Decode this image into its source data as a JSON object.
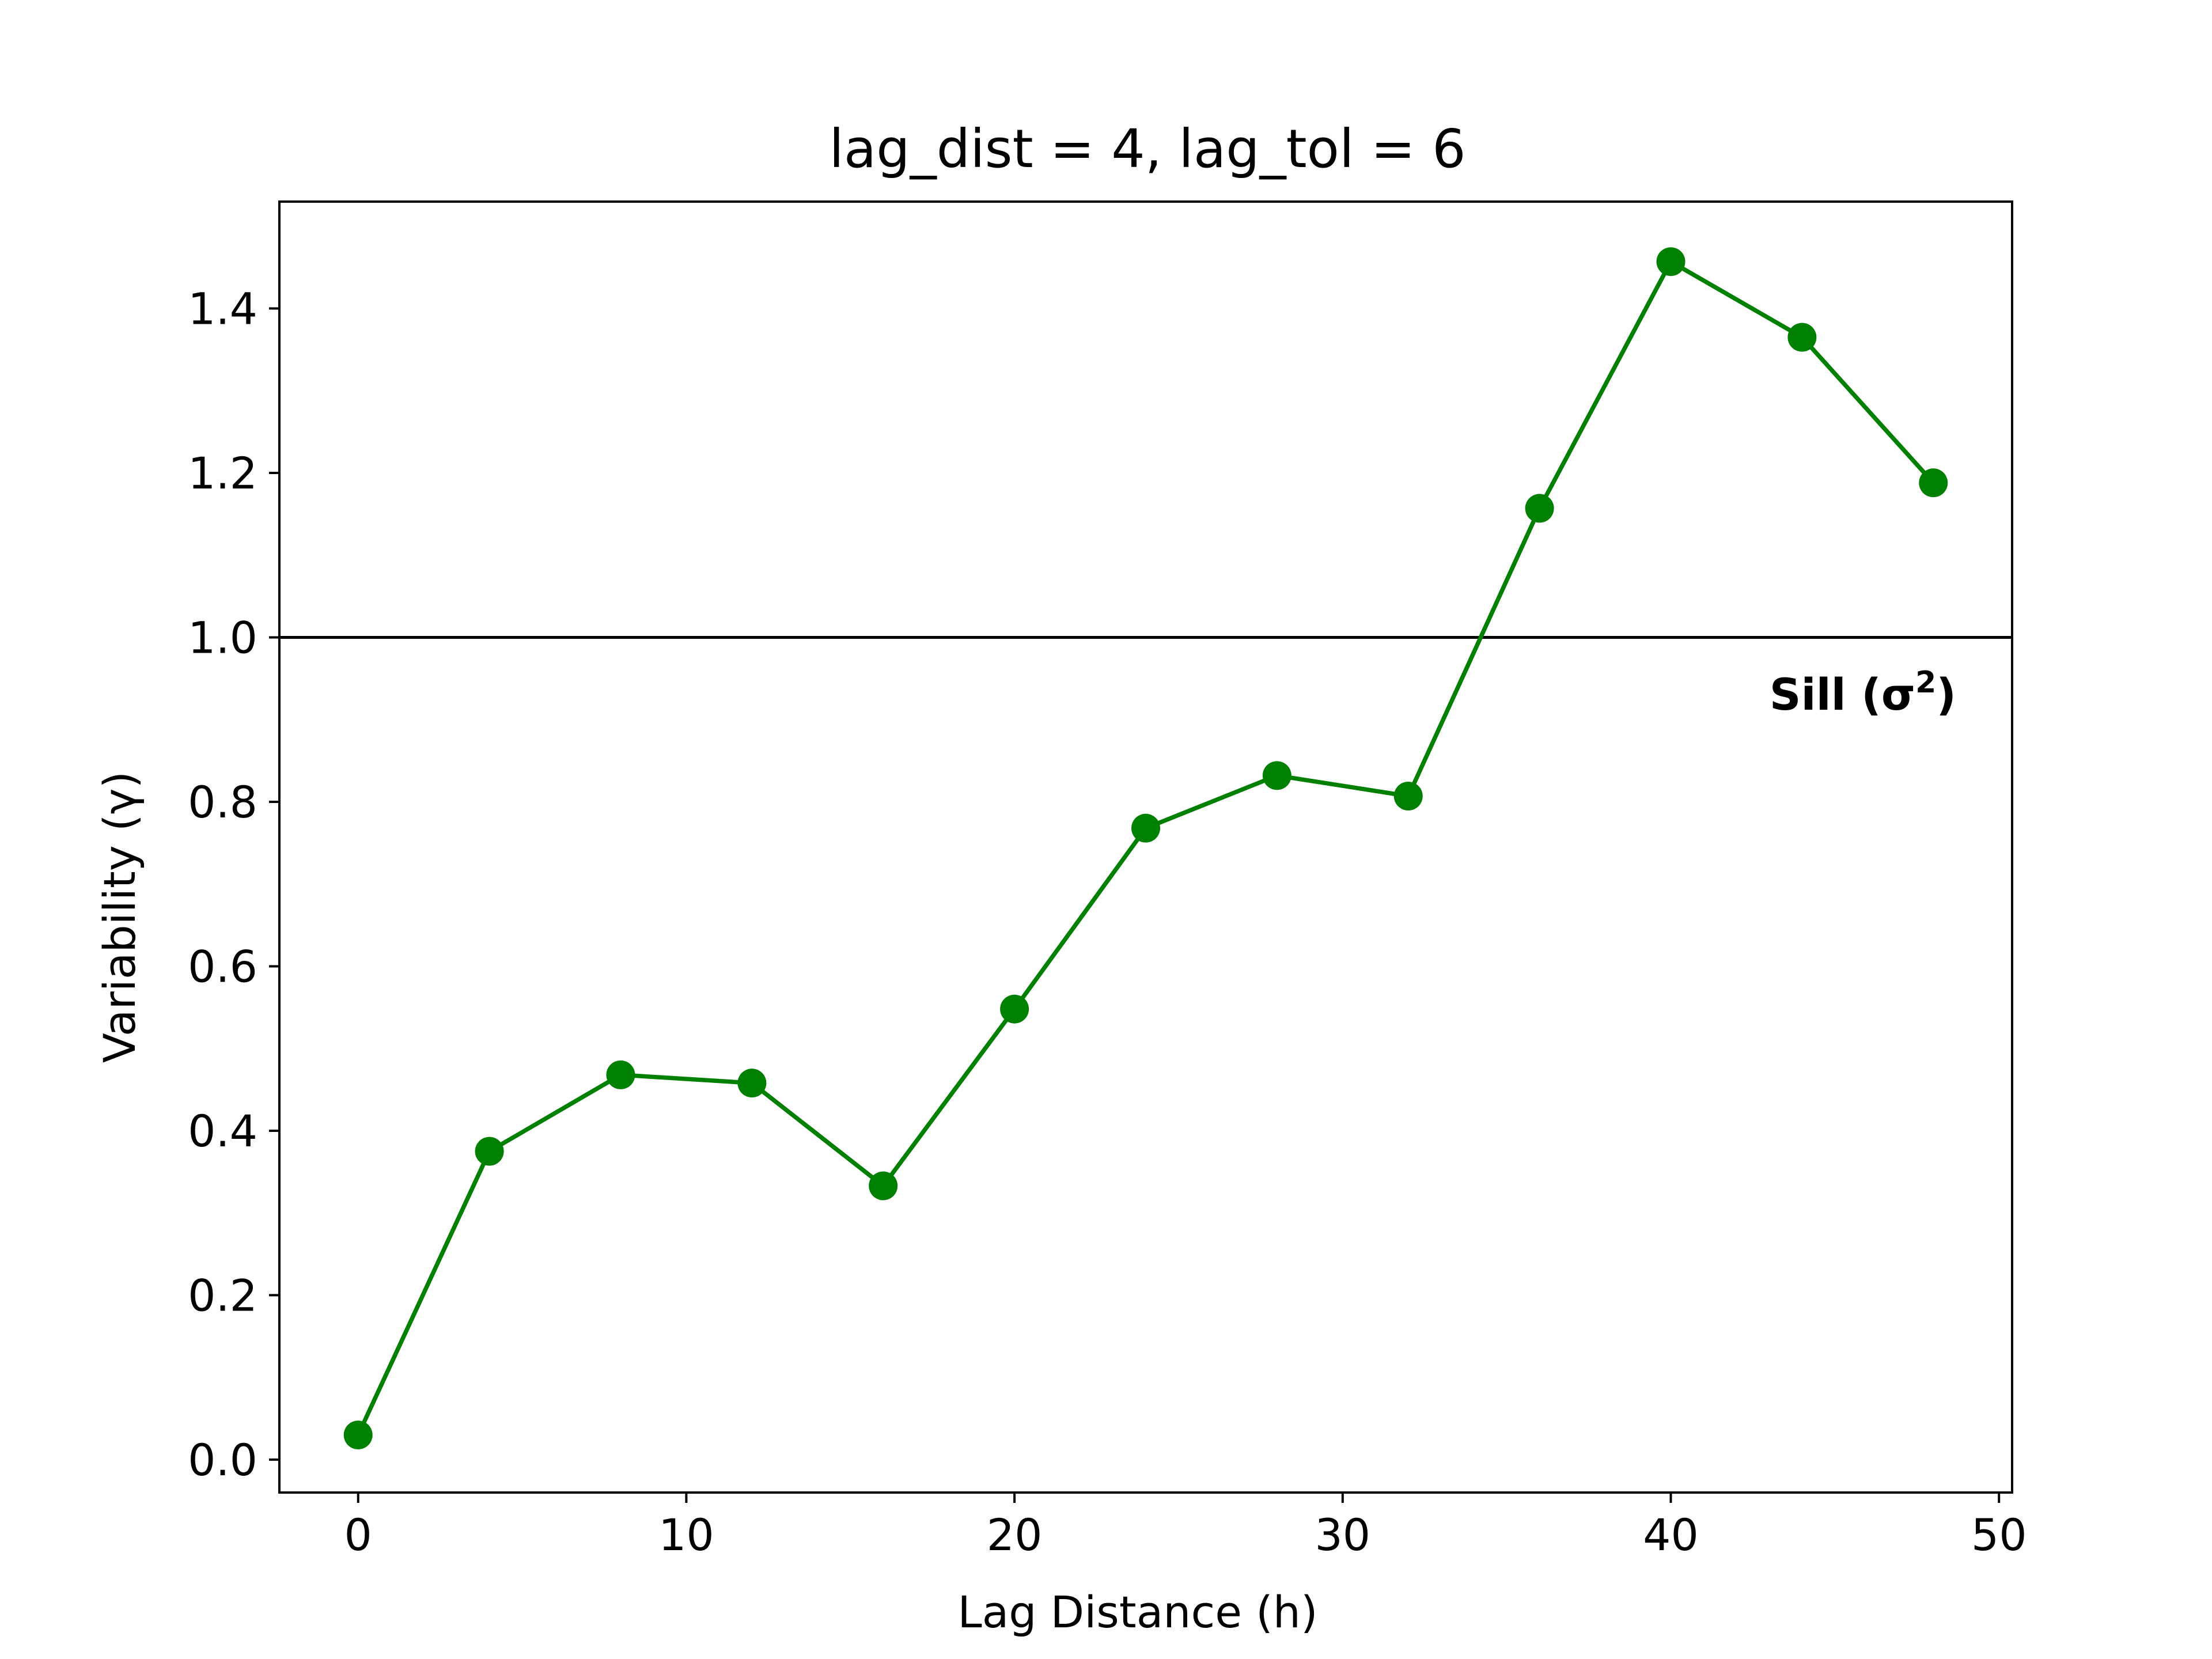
{
  "chart_data": {
    "type": "line",
    "title": "lag_dist = 4, lag_tol = 6",
    "xlabel": "Lag Distance (h)",
    "ylabel": "Variability (γ)",
    "xlim": [
      -2.4,
      50.4
    ],
    "ylim": [
      -0.04,
      1.53
    ],
    "xticks": [
      0,
      10,
      20,
      30,
      40,
      50
    ],
    "yticks": [
      0.0,
      0.2,
      0.4,
      0.6,
      0.8,
      1.0,
      1.2,
      1.4
    ],
    "xtick_labels": [
      "0",
      "10",
      "20",
      "30",
      "40",
      "50"
    ],
    "ytick_labels": [
      "0.0",
      "0.2",
      "0.4",
      "0.6",
      "0.8",
      "1.0",
      "1.2",
      "1.4"
    ],
    "grid": false,
    "series": [
      {
        "color": "#008000",
        "marker": "circle",
        "x": [
          0,
          4,
          8,
          12,
          16,
          20,
          24,
          28,
          32,
          36,
          40,
          44,
          48
        ],
        "y": [
          0.03,
          0.375,
          0.468,
          0.458,
          0.333,
          0.548,
          0.768,
          0.832,
          0.807,
          1.157,
          1.457,
          1.365,
          1.188
        ]
      }
    ],
    "reference_line": {
      "y": 1.0,
      "color": "#000000",
      "label": "Sill (σ",
      "label_sup": "2",
      "label_close": ")"
    }
  }
}
